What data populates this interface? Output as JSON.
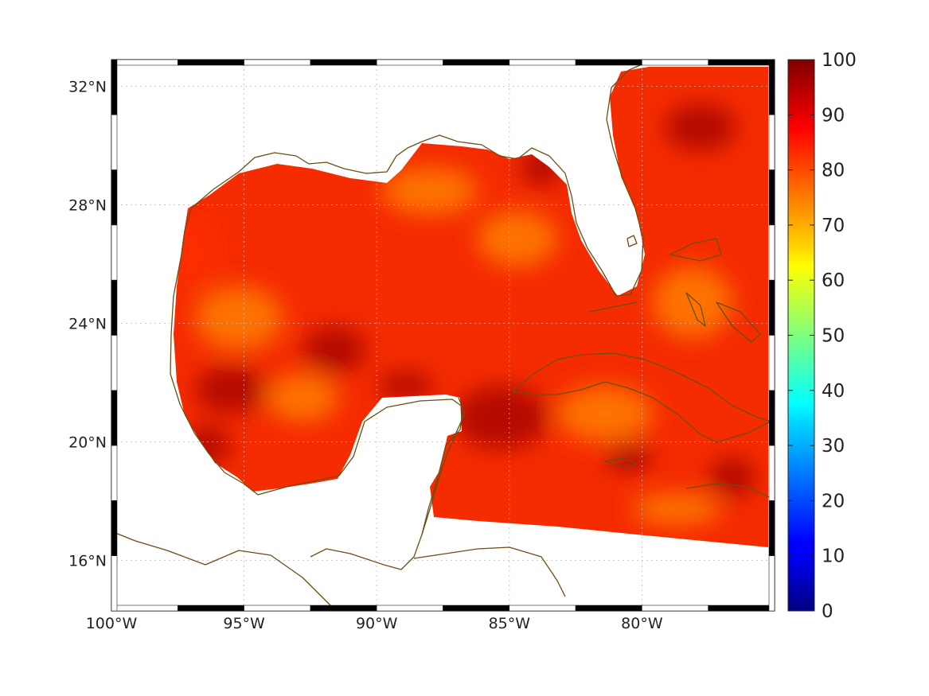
{
  "chart_data": {
    "type": "heatmap",
    "map": "Gulf of Mexico / Caribbean",
    "title": "",
    "xlabel": "",
    "ylabel": "",
    "lon_range": [
      -100,
      -75
    ],
    "lat_range": [
      14.3,
      32.9
    ],
    "x_ticks": [
      {
        "value": -100,
        "label": "100°W"
      },
      {
        "value": -95,
        "label": "95°W"
      },
      {
        "value": -90,
        "label": "90°W"
      },
      {
        "value": -85,
        "label": "85°W"
      },
      {
        "value": -80,
        "label": "80°W"
      }
    ],
    "y_ticks": [
      {
        "value": 16,
        "label": "16°N"
      },
      {
        "value": 20,
        "label": "20°N"
      },
      {
        "value": 24,
        "label": "24°N"
      },
      {
        "value": 28,
        "label": "28°N"
      },
      {
        "value": 32,
        "label": "32°N"
      }
    ],
    "colorbar": {
      "colormap": "jet",
      "range": [
        0,
        100
      ],
      "ticks": [
        0,
        10,
        20,
        30,
        40,
        50,
        60,
        70,
        80,
        90,
        100
      ],
      "tick_labels": [
        "0",
        "10",
        "20",
        "30",
        "40",
        "50",
        "60",
        "70",
        "80",
        "90",
        "100"
      ]
    },
    "grid": true,
    "field_value_range": [
      74,
      98
    ],
    "colors": {
      "coastline": "#6b4e12",
      "low_field": "#ff8a00",
      "mid_field": "#ff2b00",
      "high_field": "#a00000"
    }
  }
}
